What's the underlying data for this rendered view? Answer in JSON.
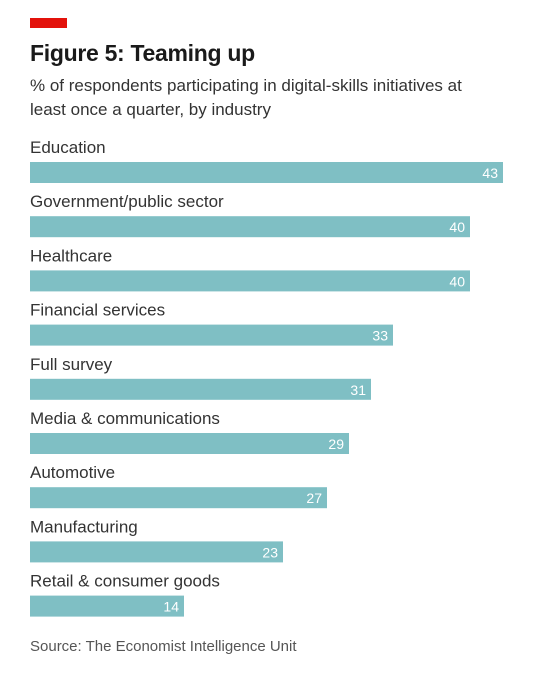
{
  "header": {
    "accent_color": "#e3120b",
    "title": "Figure 5: Teaming up",
    "subtitle": "% of respondents participating in digital-skills initiatives at least once a quarter, by industry"
  },
  "chart_data": {
    "type": "bar",
    "orientation": "horizontal",
    "title": "Figure 5: Teaming up",
    "subtitle": "% of respondents participating in digital-skills initiatives at least once a quarter, by industry",
    "categories": [
      "Education",
      "Government/public sector",
      "Healthcare",
      "Financial services",
      "Full survey",
      "Media & communications",
      "Automotive",
      "Manufacturing",
      "Retail & consumer goods"
    ],
    "values": [
      43,
      40,
      40,
      33,
      31,
      29,
      27,
      23,
      14
    ],
    "xlim": [
      0,
      43
    ],
    "grid": false,
    "legend": "none",
    "bar_color": "#7fbfc4",
    "label_color": "#333333",
    "value_label_color": "#ffffff"
  },
  "footer": {
    "source": "Source: The Economist Intelligence Unit"
  }
}
